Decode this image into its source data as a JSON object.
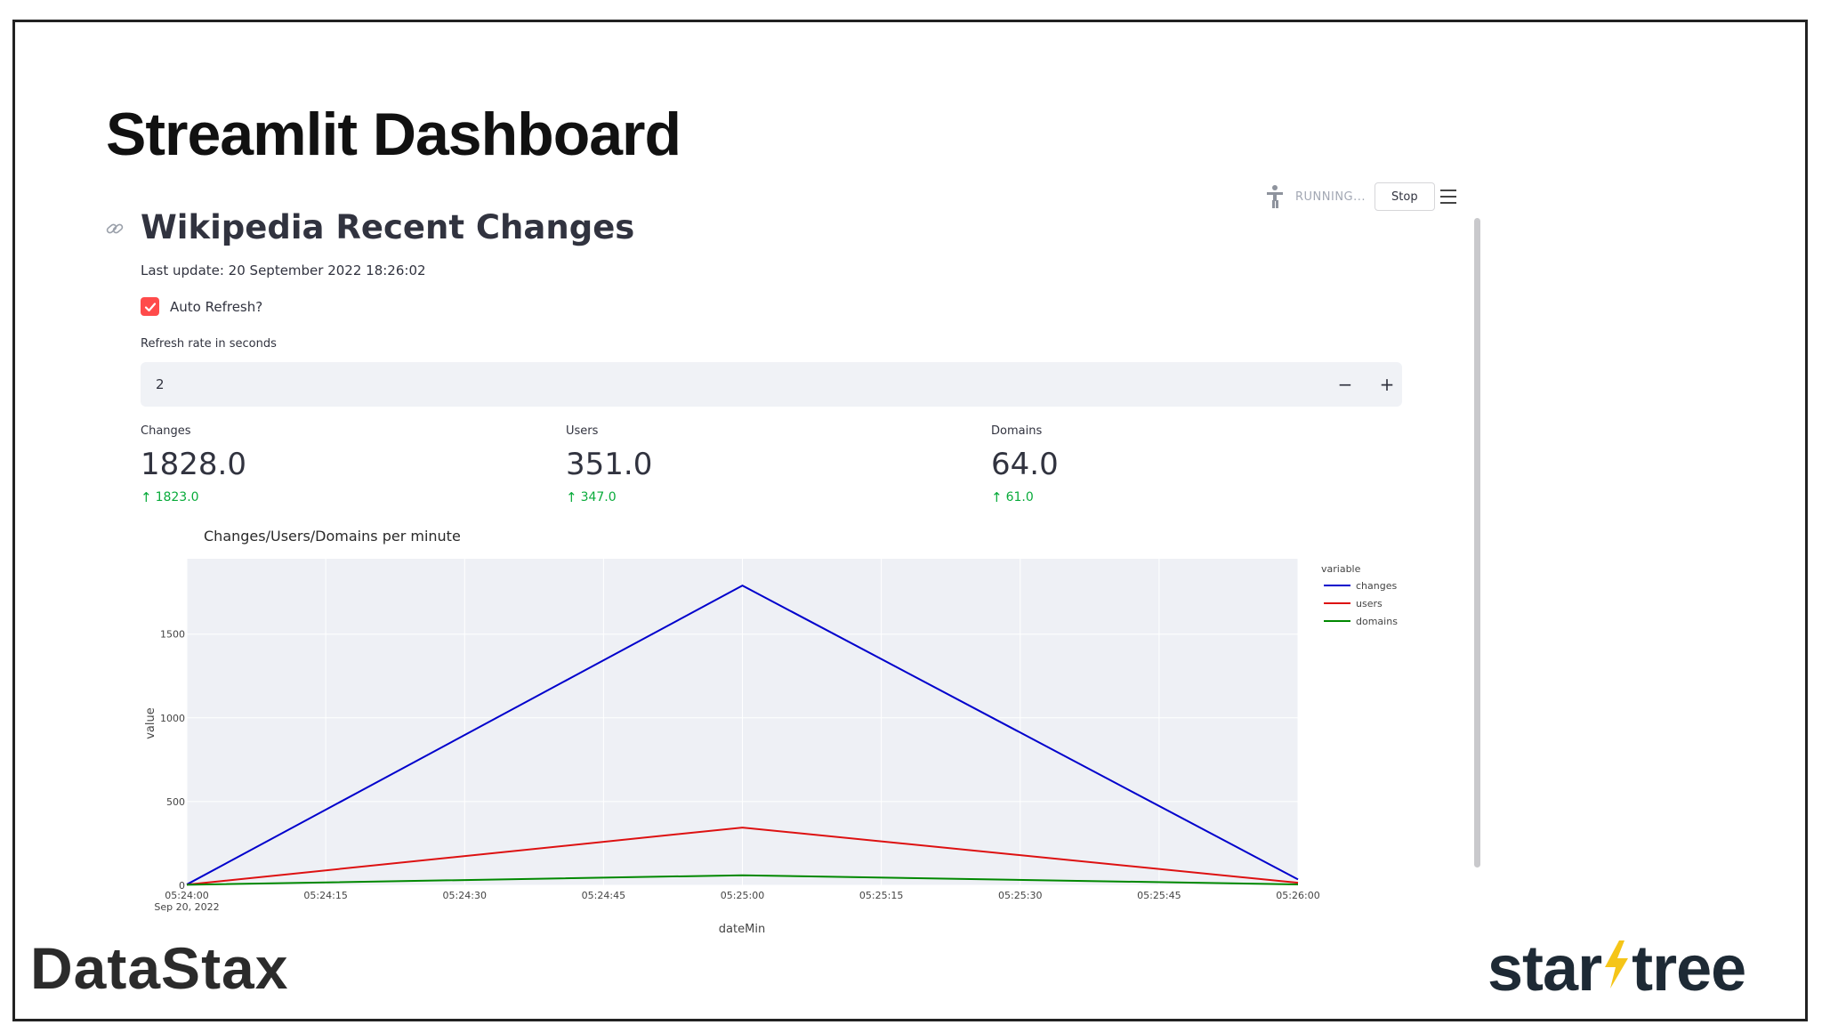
{
  "slide": {
    "title": "Streamlit Dashboard",
    "logos": {
      "left": "DataStax",
      "right_part1": "star",
      "right_part2": "tree"
    }
  },
  "toolbar": {
    "status": "RUNNING...",
    "stop_label": "Stop"
  },
  "app": {
    "title": "Wikipedia Recent Changes",
    "last_update": "Last update: 20 September 2022 18:26:02",
    "auto_refresh": {
      "label": "Auto Refresh?",
      "checked": true
    },
    "refresh_rate": {
      "label": "Refresh rate in seconds",
      "value": "2",
      "minus": "−",
      "plus": "+"
    },
    "metrics": [
      {
        "label": "Changes",
        "value": "1828.0",
        "delta": "1823.0"
      },
      {
        "label": "Users",
        "value": "351.0",
        "delta": "347.0"
      },
      {
        "label": "Domains",
        "value": "64.0",
        "delta": "61.0"
      }
    ]
  },
  "colors": {
    "accent": "#ff4b4b",
    "delta_positive": "#09ab3b",
    "changes": "#0000cc",
    "users": "#dd1111",
    "domains": "#008800"
  },
  "chart_data": {
    "type": "line",
    "title": "Changes/Users/Domains per minute",
    "xlabel": "dateMin",
    "ylabel": "value",
    "x": [
      "05:24:00",
      "05:25:00",
      "05:26:00"
    ],
    "x_ticks": [
      "05:24:00",
      "05:24:15",
      "05:24:30",
      "05:24:45",
      "05:25:00",
      "05:25:15",
      "05:25:30",
      "05:25:45",
      "05:26:00"
    ],
    "x_date_label": "Sep 20, 2022",
    "y_ticks": [
      0,
      500,
      1000,
      1500
    ],
    "ylim": [
      0,
      1950
    ],
    "legend_title": "variable",
    "legend_position": "right",
    "series": [
      {
        "name": "changes",
        "values": [
          5,
          1790,
          35
        ],
        "color": "#0000cc"
      },
      {
        "name": "users",
        "values": [
          4,
          345,
          15
        ],
        "color": "#dd1111"
      },
      {
        "name": "domains",
        "values": [
          3,
          60,
          5
        ],
        "color": "#008800"
      }
    ]
  }
}
